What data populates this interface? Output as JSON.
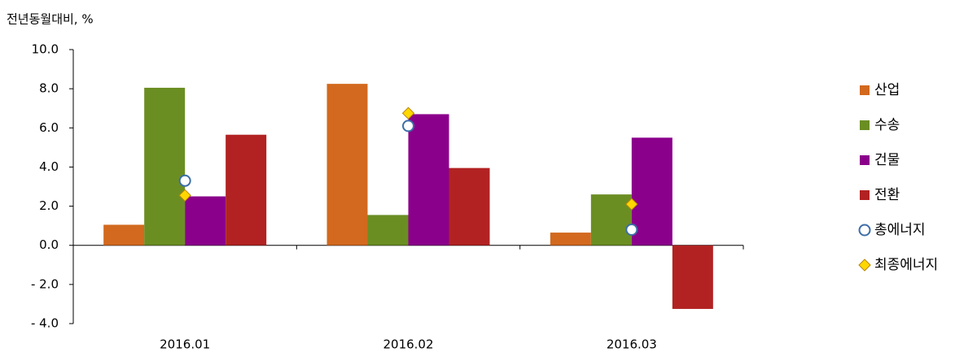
{
  "chart_data": {
    "type": "bar",
    "y_label": "전년동월대비, %",
    "categories": [
      "2016.01",
      "2016.02",
      "2016.03"
    ],
    "series": [
      {
        "name": "산업",
        "type": "bar",
        "color": "#d2691e",
        "values": [
          1.05,
          8.25,
          0.65
        ]
      },
      {
        "name": "수송",
        "type": "bar",
        "color": "#6b8e23",
        "values": [
          8.05,
          1.55,
          2.6
        ]
      },
      {
        "name": "건물",
        "type": "bar",
        "color": "#8b008b",
        "values": [
          2.5,
          6.7,
          5.5
        ]
      },
      {
        "name": "전환",
        "type": "bar",
        "color": "#b22222",
        "values": [
          5.65,
          3.95,
          -3.25
        ]
      },
      {
        "name": "총에너지",
        "type": "scatter",
        "marker": "circle",
        "color": "#3c6ea8",
        "values": [
          3.3,
          6.1,
          0.8
        ]
      },
      {
        "name": "최종에너지",
        "type": "scatter",
        "marker": "diamond",
        "color": "#ffd700",
        "values": [
          2.55,
          6.75,
          2.1
        ]
      }
    ],
    "ylim": [
      -4,
      10
    ],
    "yticks": [
      {
        "value": 10,
        "label": "10.0"
      },
      {
        "value": 8,
        "label": "8.0"
      },
      {
        "value": 6,
        "label": "6.0"
      },
      {
        "value": 4,
        "label": "4.0"
      },
      {
        "value": 2,
        "label": "2.0"
      },
      {
        "value": 0,
        "label": "0.0"
      },
      {
        "value": -2,
        "label": "- 2.0"
      },
      {
        "value": -4,
        "label": "- 4.0"
      }
    ],
    "grid": false,
    "legend": "right"
  }
}
